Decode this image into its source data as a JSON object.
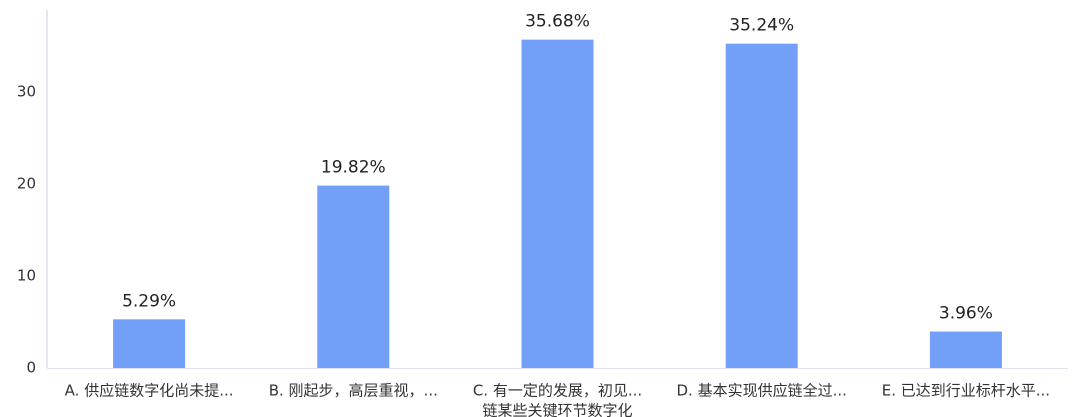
{
  "chart_data": {
    "type": "bar",
    "categories": [
      "A. 供应链数字化尚未提...",
      "B. 刚起步，高层重视，...",
      "C. 有一定的发展，初见...",
      "D. 基本实现供应链全过...",
      "E. 已达到行业标杆水平..."
    ],
    "category_second_lines": [
      null,
      null,
      "链某些关键环节数字化",
      null,
      null
    ],
    "values": [
      5.29,
      19.82,
      35.68,
      35.24,
      3.96
    ],
    "value_labels": [
      "5.29%",
      "19.82%",
      "35.68%",
      "35.24%",
      "3.96%"
    ],
    "color": "#729ff8",
    "ylim": [
      0,
      38.9
    ],
    "yticks": [
      0,
      10,
      20,
      30
    ],
    "grid": false
  }
}
